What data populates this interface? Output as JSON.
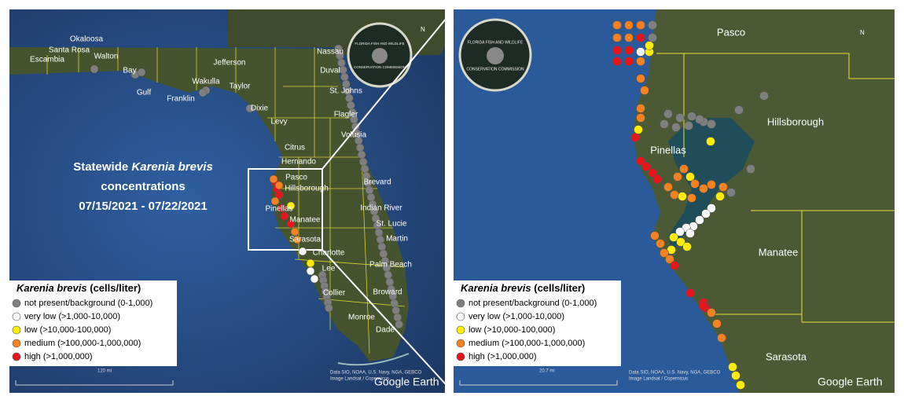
{
  "left_panel": {
    "title": {
      "prefix": "Statewide",
      "species": "Karenia brevis",
      "line2": "concentrations",
      "dates": "07/15/2021 - 07/22/2021"
    },
    "counties": [
      "Okaloosa",
      "Santa Rosa",
      "Walton",
      "Escambia",
      "Bay",
      "Jefferson",
      "Nassau",
      "Duval",
      "Wakulla",
      "Taylor",
      "Gulf",
      "Franklin",
      "St. Johns",
      "Dixie",
      "Flagler",
      "Levy",
      "Volusia",
      "Citrus",
      "Hernando",
      "Brevard",
      "Pasco",
      "Hillsborough",
      "Indian River",
      "Pinellas",
      "Manatee",
      "St. Lucie",
      "Sarasota",
      "Martin",
      "Charlotte",
      "Palm Beach",
      "Lee",
      "Broward",
      "Collier",
      "Monroe",
      "Dade"
    ],
    "scale": "120 mi"
  },
  "right_panel": {
    "counties": [
      "Pasco",
      "Hillsborough",
      "Pinellas",
      "Manatee",
      "Sarasota"
    ],
    "scale": "20.7 mi"
  },
  "legend": {
    "species": "Karenia brevis",
    "unit": "(cells/liter)",
    "items": [
      {
        "label": "not present/background (0-1,000)",
        "color": "#7f7f7f"
      },
      {
        "label": "very low (>1,000-10,000)",
        "color": "#ffffff"
      },
      {
        "label": "low (>10,000-100,000)",
        "color": "#ffee00"
      },
      {
        "label": "medium (>100,000-1,000,000)",
        "color": "#f58220"
      },
      {
        "label": "high (>1,000,000)",
        "color": "#e8141c"
      }
    ]
  },
  "attribution": [
    "Data SIO, NOAA, U.S. Navy, NGA, GEBCO",
    "Image Landsat / Copernicus"
  ],
  "brand": "Google Earth",
  "logo": {
    "top": "FLORIDA FISH AND WILDLIFE",
    "bottom": "CONSERVATION COMMISSION"
  },
  "compass": "N"
}
